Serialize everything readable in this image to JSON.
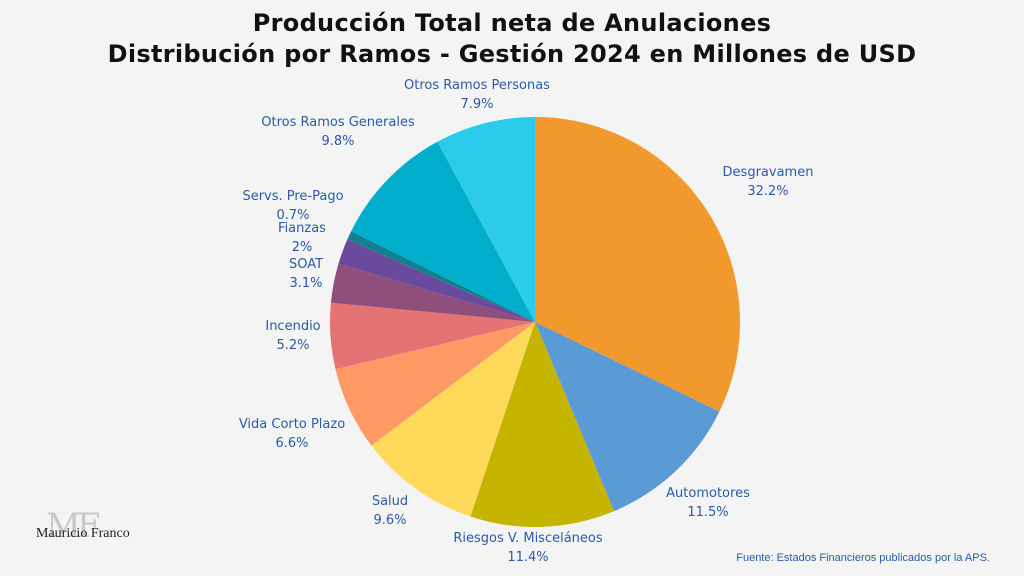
{
  "title_lines": [
    "Producción Total neta de Anulaciones",
    "Distribución por Ramos - Gestión 2024 en Millones de USD"
  ],
  "source": "Fuente: Estados Financieros publicados por la APS.",
  "logo": {
    "mark": "MF",
    "name": "Mauricio Franco"
  },
  "chart_data": {
    "type": "pie",
    "title": "Producción Total neta de Anulaciones Distribución por Ramos - Gestión 2024 en Millones de USD",
    "unit": "%",
    "slices": [
      {
        "label": "Desgravamen",
        "value": 32.2,
        "display": "32.2%",
        "color": "#f2992e"
      },
      {
        "label": "Automotores",
        "value": 11.5,
        "display": "11.5%",
        "color": "#5b9bd5"
      },
      {
        "label": "Riesgos V. Misceláneos",
        "value": 11.4,
        "display": "11.4%",
        "color": "#c5b400"
      },
      {
        "label": "Salud",
        "value": 9.6,
        "display": "9.6%",
        "color": "#ffd95a"
      },
      {
        "label": "Vida Corto Plazo",
        "value": 6.6,
        "display": "6.6%",
        "color": "#ff9966"
      },
      {
        "label": "Incendio",
        "value": 5.2,
        "display": "5.2%",
        "color": "#e57373"
      },
      {
        "label": "SOAT",
        "value": 3.1,
        "display": "3.1%",
        "color": "#8e4f7d"
      },
      {
        "label": "Fianzas",
        "value": 2,
        "display": "2%",
        "color": "#6a4a9c"
      },
      {
        "label": "Servs. Pre-Pago",
        "value": 0.7,
        "display": "0.7%",
        "color": "#12808f"
      },
      {
        "label": "Otros Ramos Generales",
        "value": 9.8,
        "display": "9.8%",
        "color": "#00aecb"
      },
      {
        "label": "Otros Ramos Personas",
        "value": 7.9,
        "display": "7.9%",
        "color": "#2ccbeb"
      }
    ]
  }
}
